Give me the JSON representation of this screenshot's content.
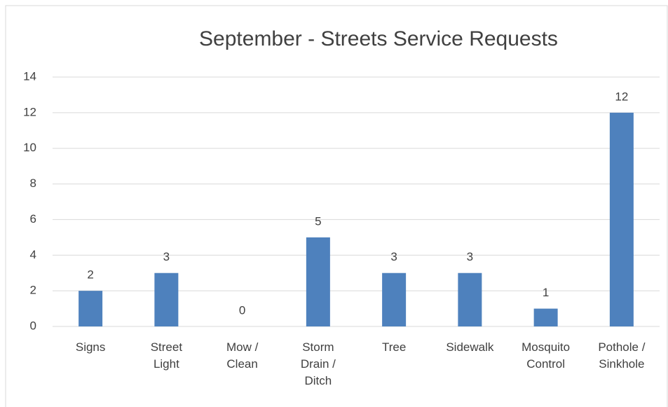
{
  "chart_data": {
    "type": "bar",
    "title": "September - Streets Service Requests",
    "categories": [
      "Signs",
      "Street Light",
      "Mow / Clean",
      "Storm Drain / Ditch",
      "Tree",
      "Sidewalk",
      "Mosquito Control",
      "Pothole / Sinkhole"
    ],
    "values": [
      2,
      3,
      0,
      5,
      3,
      3,
      1,
      12
    ],
    "color": "#4e81bd",
    "ylim": [
      0,
      14
    ],
    "yticks": [
      0,
      2,
      4,
      6,
      8,
      10,
      12,
      14
    ],
    "grid": true
  }
}
